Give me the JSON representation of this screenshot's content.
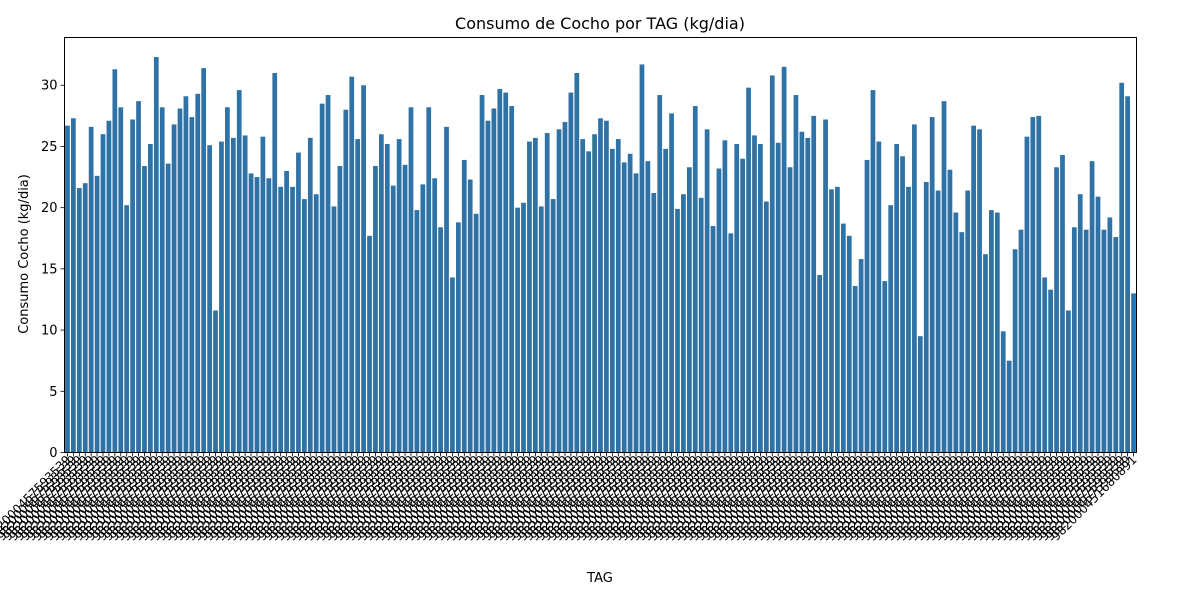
{
  "chart_data": {
    "type": "bar",
    "title": "Consumo de Cocho por TAG (kg/dia)",
    "xlabel": "TAG",
    "ylabel": "Consumo Cocho (kg/dia)",
    "ylim": [
      0,
      33.9
    ],
    "yticks": [
      0,
      5,
      10,
      15,
      20,
      25,
      30
    ],
    "bar_color": "#2e72a6",
    "categories_legible": [
      "982000457593539",
      "982000451680891"
    ],
    "values": [
      26.7,
      27.3,
      21.6,
      22.0,
      26.6,
      22.6,
      26.0,
      27.1,
      31.3,
      28.2,
      20.2,
      27.2,
      28.7,
      23.4,
      25.2,
      32.3,
      28.2,
      23.6,
      26.8,
      28.1,
      29.1,
      27.4,
      29.3,
      31.4,
      25.1,
      11.6,
      25.4,
      28.2,
      25.7,
      29.6,
      25.9,
      22.8,
      22.5,
      25.8,
      22.4,
      31.0,
      21.7,
      23.0,
      21.7,
      24.5,
      20.7,
      25.7,
      21.1,
      28.5,
      29.2,
      20.1,
      23.4,
      28.0,
      30.7,
      25.6,
      30.0,
      17.7,
      23.4,
      26.0,
      25.2,
      21.8,
      25.6,
      23.5,
      28.2,
      19.8,
      21.9,
      28.2,
      22.4,
      18.4,
      26.6,
      14.3,
      18.8,
      23.9,
      22.3,
      19.5,
      29.2,
      27.1,
      28.1,
      29.7,
      29.4,
      28.3,
      20.0,
      20.4,
      25.4,
      25.7,
      20.1,
      26.1,
      20.7,
      26.4,
      27.0,
      29.4,
      31.0,
      25.6,
      24.6,
      26.0,
      27.3,
      27.1,
      24.8,
      25.6,
      23.7,
      24.4,
      22.8,
      31.7,
      23.8,
      21.2,
      29.2,
      24.8,
      27.7,
      19.9,
      21.1,
      23.3,
      28.3,
      20.8,
      26.4,
      18.5,
      23.2,
      25.5,
      17.9,
      25.2,
      24.0,
      29.8,
      25.9,
      25.2,
      20.5,
      30.8,
      25.3,
      31.5,
      23.3,
      29.2,
      26.2,
      25.7,
      27.5,
      14.5,
      27.2,
      21.5,
      21.7,
      18.7,
      17.7,
      13.6,
      15.8,
      23.9,
      29.6,
      25.4,
      14.0,
      20.2,
      25.2,
      24.2,
      21.7,
      26.8,
      9.5,
      22.1,
      27.4,
      21.4,
      28.7,
      23.1,
      19.6,
      18.0,
      21.4,
      26.7,
      26.4,
      16.2,
      19.8,
      19.6,
      9.9,
      7.5,
      16.6,
      18.2,
      25.8,
      27.4,
      27.5,
      14.3,
      13.3,
      23.3,
      24.3,
      11.6,
      18.4,
      21.1,
      18.2,
      23.8,
      20.9,
      18.2,
      19.2,
      17.6,
      30.2,
      29.1,
      13.0
    ]
  }
}
